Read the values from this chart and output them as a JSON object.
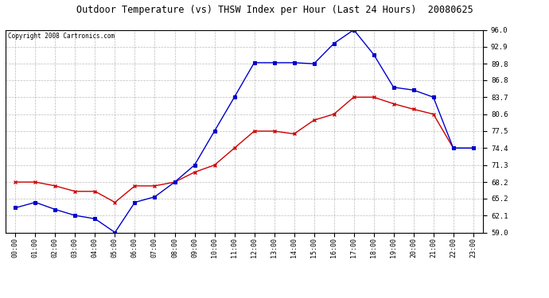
{
  "title": "Outdoor Temperature (vs) THSW Index per Hour (Last 24 Hours)  20080625",
  "copyright": "Copyright 2008 Cartronics.com",
  "hours": [
    "00:00",
    "01:00",
    "02:00",
    "03:00",
    "04:00",
    "05:00",
    "06:00",
    "07:00",
    "08:00",
    "09:00",
    "10:00",
    "11:00",
    "12:00",
    "13:00",
    "14:00",
    "15:00",
    "16:00",
    "17:00",
    "18:00",
    "19:00",
    "20:00",
    "21:00",
    "22:00",
    "23:00"
  ],
  "temp_y": [
    68.2,
    68.2,
    67.5,
    66.5,
    66.5,
    64.5,
    67.5,
    67.5,
    68.2,
    70.0,
    71.3,
    74.4,
    77.5,
    77.5,
    77.0,
    79.5,
    80.6,
    83.7,
    83.7,
    82.5,
    81.5,
    80.6,
    74.4,
    74.4
  ],
  "thsw_y": [
    63.5,
    64.5,
    63.2,
    62.1,
    61.5,
    59.0,
    64.5,
    65.5,
    68.2,
    71.3,
    77.5,
    83.7,
    90.0,
    90.0,
    90.0,
    89.8,
    93.5,
    96.0,
    91.5,
    85.5,
    85.0,
    83.7,
    74.4,
    74.4
  ],
  "ylim": [
    59.0,
    96.0
  ],
  "yticks": [
    59.0,
    62.1,
    65.2,
    68.2,
    71.3,
    74.4,
    77.5,
    80.6,
    83.7,
    86.8,
    89.8,
    92.9,
    96.0
  ],
  "temp_color": "#cc0000",
  "thsw_color": "#0000cc",
  "bg_color": "#ffffff",
  "grid_color": "#aaaaaa"
}
